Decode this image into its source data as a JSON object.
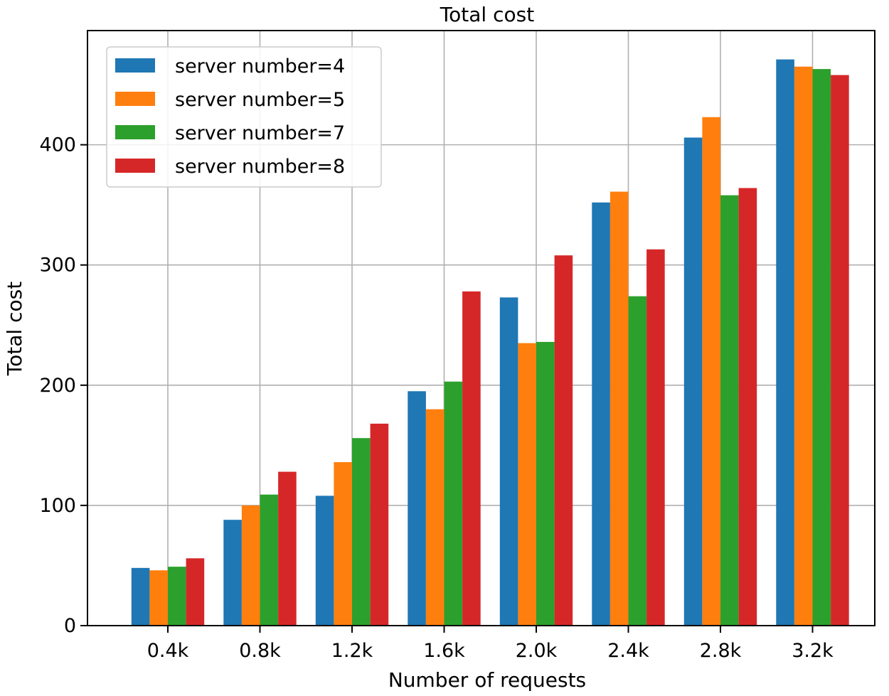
{
  "chart_data": {
    "type": "bar",
    "title": "Total cost",
    "xlabel": "Number of requests",
    "ylabel": "Total cost",
    "categories": [
      "0.4k",
      "0.8k",
      "1.2k",
      "1.6k",
      "2.0k",
      "2.4k",
      "2.8k",
      "3.2k"
    ],
    "series": [
      {
        "name": "server number=4",
        "color": "#1f77b4",
        "values": [
          48,
          88,
          108,
          195,
          273,
          352,
          406,
          471
        ]
      },
      {
        "name": "server number=5",
        "color": "#ff7f0e",
        "values": [
          46,
          100,
          136,
          180,
          235,
          361,
          423,
          465
        ]
      },
      {
        "name": "server number=7",
        "color": "#2ca02c",
        "values": [
          49,
          109,
          156,
          203,
          236,
          274,
          358,
          463
        ]
      },
      {
        "name": "server number=8",
        "color": "#d62728",
        "values": [
          56,
          128,
          168,
          278,
          308,
          313,
          364,
          458
        ]
      }
    ],
    "yticks": [
      0,
      100,
      200,
      300,
      400
    ],
    "ylim": [
      0,
      495
    ],
    "grid": true,
    "legend_position": "top-left"
  }
}
